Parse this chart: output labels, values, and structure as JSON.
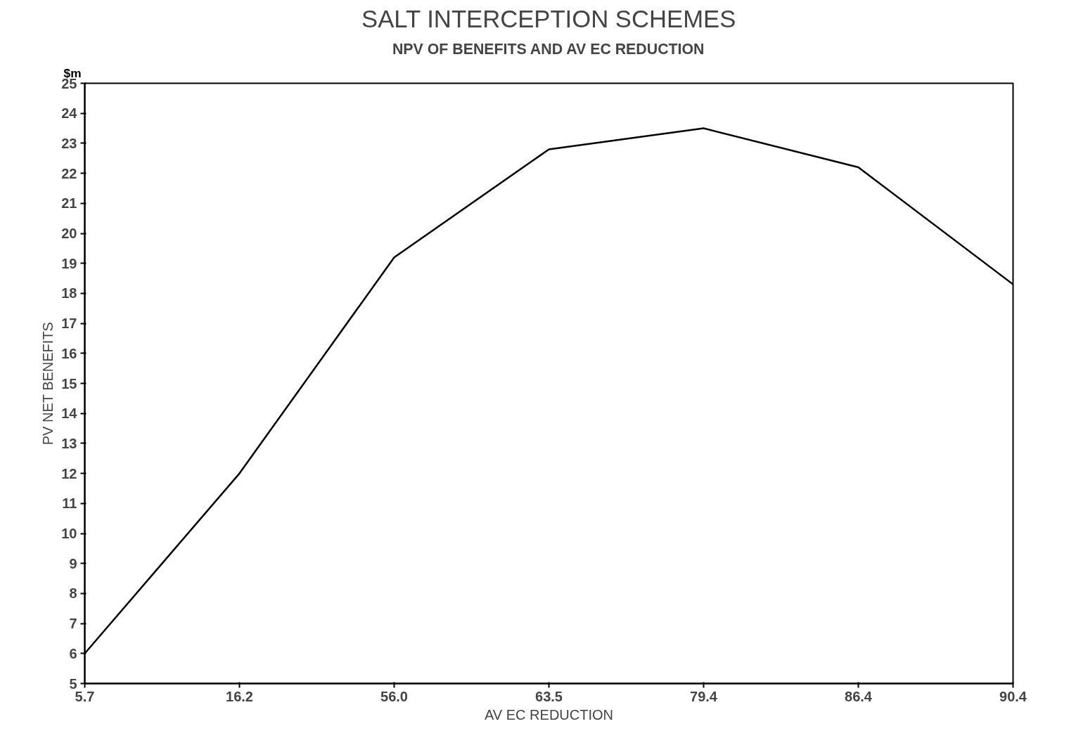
{
  "chart_data": {
    "type": "line",
    "title": "SALT INTERCEPTION SCHEMES",
    "subtitle": "NPV OF BENEFITS AND AV EC REDUCTION",
    "xlabel": "AV EC REDUCTION",
    "ylabel": "PV NET BENEFITS",
    "annotations": [
      "$m"
    ],
    "categories": [
      "5.7",
      "16.2",
      "56.0",
      "63.5",
      "79.4",
      "86.4",
      "90.4"
    ],
    "series": [
      {
        "color": "#000000",
        "values": [
          6,
          12,
          19.2,
          22.8,
          23.5,
          22.2,
          18.3
        ]
      }
    ],
    "ylim": [
      5,
      25
    ],
    "yticks": [
      5,
      6,
      7,
      8,
      9,
      10,
      11,
      12,
      13,
      14,
      15,
      16,
      17,
      18,
      19,
      20,
      21,
      22,
      23,
      24,
      25
    ],
    "grid": false,
    "marker": "none",
    "line_style": "solid"
  }
}
